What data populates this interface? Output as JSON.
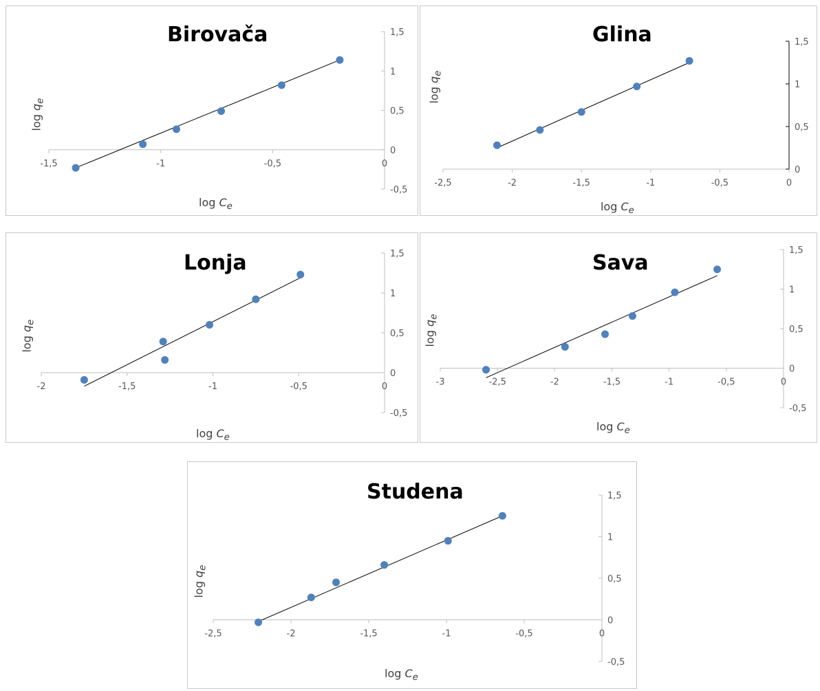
{
  "chart_data": [
    {
      "type": "scatter",
      "title": "Birovača",
      "xlabel_main": "log ",
      "xlabel_var": "C",
      "xlabel_sub": "e",
      "ylabel_main": "log ",
      "ylabel_var": "q",
      "ylabel_sub": "e",
      "xlim": [
        -1.5,
        0
      ],
      "ylim": [
        -0.5,
        1.5
      ],
      "xticks": [
        -1.5,
        -1,
        -0.5,
        0
      ],
      "xtick_labels": [
        "-1,5",
        "-1",
        "-0,5",
        "0"
      ],
      "yticks": [
        -0.5,
        0,
        0.5,
        1,
        1.5
      ],
      "ytick_labels": [
        "-0,5",
        "0",
        "0,5",
        "1",
        "1,5"
      ],
      "points": [
        [
          -1.38,
          -0.23
        ],
        [
          -1.08,
          0.07
        ],
        [
          -0.93,
          0.26
        ],
        [
          -0.73,
          0.49
        ],
        [
          -0.46,
          0.82
        ],
        [
          -0.2,
          1.14
        ]
      ],
      "trendline": [
        [
          -1.38,
          -0.23
        ],
        [
          -0.2,
          1.14
        ]
      ],
      "marker_color": "#4f81bd",
      "line_color": "#000000"
    },
    {
      "type": "scatter",
      "title": "Glina",
      "xlabel_main": "log ",
      "xlabel_var": "C",
      "xlabel_sub": "e",
      "ylabel_main": "log ",
      "ylabel_var": "q",
      "ylabel_sub": "e",
      "xlim": [
        -2.5,
        0
      ],
      "ylim": [
        0,
        1.5
      ],
      "xticks": [
        -2.5,
        -2,
        -1.5,
        -1,
        -0.5,
        0
      ],
      "xtick_labels": [
        "-2,5",
        "-2",
        "-1,5",
        "-1",
        "-0,5",
        "0"
      ],
      "yticks": [
        0,
        0.5,
        1,
        1.5
      ],
      "ytick_labels": [
        "0",
        "0,5",
        "1",
        "1,5"
      ],
      "points": [
        [
          -2.11,
          0.28
        ],
        [
          -1.8,
          0.46
        ],
        [
          -1.5,
          0.67
        ],
        [
          -1.1,
          0.97
        ],
        [
          -0.72,
          1.27
        ]
      ],
      "trendline": [
        [
          -2.11,
          0.25
        ],
        [
          -0.72,
          1.25
        ]
      ],
      "marker_color": "#4f81bd",
      "line_color": "#000000"
    },
    {
      "type": "scatter",
      "title": "Lonja",
      "xlabel_main": "log ",
      "xlabel_var": "C",
      "xlabel_sub": "e",
      "ylabel_main": "log ",
      "ylabel_var": "q",
      "ylabel_sub": "e",
      "xlim": [
        -2,
        0
      ],
      "ylim": [
        -0.5,
        1.5
      ],
      "xticks": [
        -2,
        -1.5,
        -1,
        -0.5,
        0
      ],
      "xtick_labels": [
        "-2",
        "-1,5",
        "-1",
        "-0,5",
        "0"
      ],
      "yticks": [
        -0.5,
        0,
        0.5,
        1,
        1.5
      ],
      "ytick_labels": [
        "-0,5",
        "0",
        "0,5",
        "1",
        "1,5"
      ],
      "points": [
        [
          -1.75,
          -0.09
        ],
        [
          -1.29,
          0.39
        ],
        [
          -1.28,
          0.16
        ],
        [
          -1.02,
          0.6
        ],
        [
          -0.75,
          0.92
        ],
        [
          -0.49,
          1.23
        ]
      ],
      "trendline": [
        [
          -1.75,
          -0.17
        ],
        [
          -0.49,
          1.19
        ]
      ],
      "marker_color": "#4f81bd",
      "line_color": "#000000"
    },
    {
      "type": "scatter",
      "title": "Sava",
      "xlabel_main": "log ",
      "xlabel_var": "C",
      "xlabel_sub": "e",
      "ylabel_main": "log ",
      "ylabel_var": "q",
      "ylabel_sub": "e",
      "xlim": [
        -3,
        0
      ],
      "ylim": [
        -0.5,
        1.5
      ],
      "xticks": [
        -3,
        -2.5,
        -2,
        -1.5,
        -1,
        -0.5,
        0
      ],
      "xtick_labels": [
        "-3",
        "-2,5",
        "-2",
        "-1,5",
        "-1",
        "-0,5",
        "0"
      ],
      "yticks": [
        -0.5,
        0,
        0.5,
        1,
        1.5
      ],
      "ytick_labels": [
        "-0,5",
        "0",
        "0,5",
        "1",
        "1,5"
      ],
      "points": [
        [
          -2.6,
          -0.02
        ],
        [
          -1.91,
          0.27
        ],
        [
          -1.56,
          0.43
        ],
        [
          -1.32,
          0.66
        ],
        [
          -0.95,
          0.96
        ],
        [
          -0.58,
          1.25
        ]
      ],
      "trendline": [
        [
          -2.6,
          -0.12
        ],
        [
          -0.58,
          1.17
        ]
      ],
      "marker_color": "#4f81bd",
      "line_color": "#000000"
    },
    {
      "type": "scatter",
      "title": "Studena",
      "xlabel_main": "log ",
      "xlabel_var": "C",
      "xlabel_sub": "e",
      "ylabel_main": "log ",
      "ylabel_var": "q",
      "ylabel_sub": "e",
      "xlim": [
        -2.5,
        0
      ],
      "ylim": [
        -0.5,
        1.5
      ],
      "xticks": [
        -2.5,
        -2,
        -1.5,
        -1,
        -0.5,
        0
      ],
      "xtick_labels": [
        "-2,5",
        "-2",
        "-1,5",
        "-1",
        "-0,5",
        "0"
      ],
      "yticks": [
        -0.5,
        0,
        0.5,
        1,
        1.5
      ],
      "ytick_labels": [
        "-0,5",
        "0",
        "0,5",
        "1",
        "1,5"
      ],
      "points": [
        [
          -2.21,
          -0.03
        ],
        [
          -1.87,
          0.27
        ],
        [
          -1.71,
          0.45
        ],
        [
          -1.4,
          0.66
        ],
        [
          -0.99,
          0.95
        ],
        [
          -0.64,
          1.25
        ]
      ],
      "trendline": [
        [
          -2.21,
          -0.02
        ],
        [
          -0.64,
          1.25
        ]
      ],
      "marker_color": "#4f81bd",
      "line_color": "#000000"
    }
  ]
}
